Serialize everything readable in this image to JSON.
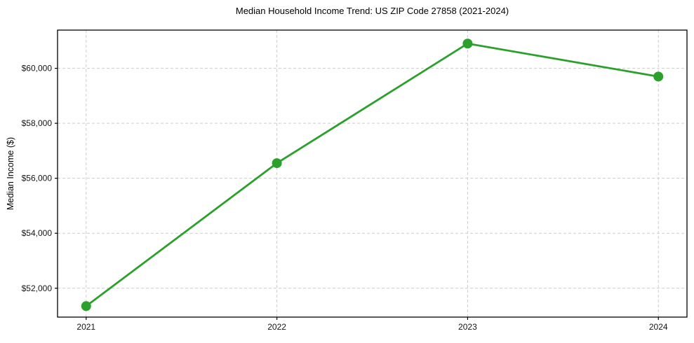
{
  "figure": {
    "background": "#ffffff",
    "frame_color": "#000000"
  },
  "chart_data": {
    "type": "line",
    "title": "Median Household Income Trend: US ZIP Code 27858 (2021-2024)",
    "xlabel": "",
    "ylabel": "Median Income ($)",
    "x": [
      2021,
      2022,
      2023,
      2024
    ],
    "x_tick_labels": [
      "2021",
      "2022",
      "2023",
      "2024"
    ],
    "series": [
      {
        "color": "#2ca02c",
        "marker": "circle",
        "values": [
          51350,
          56550,
          60900,
          59700
        ]
      }
    ],
    "y_ticks": [
      52000,
      54000,
      56000,
      58000,
      60000
    ],
    "y_tick_labels": [
      "$52,000",
      "$54,000",
      "$56,000",
      "$58,000",
      "$60,000"
    ],
    "xlim": [
      2020.85,
      2024.15
    ],
    "ylim": [
      50950,
      61390
    ],
    "grid": true,
    "grid_color": "#cccccc",
    "grid_style": "dashed",
    "line_width": 2.8,
    "marker_radius": 7,
    "legend": "none"
  }
}
